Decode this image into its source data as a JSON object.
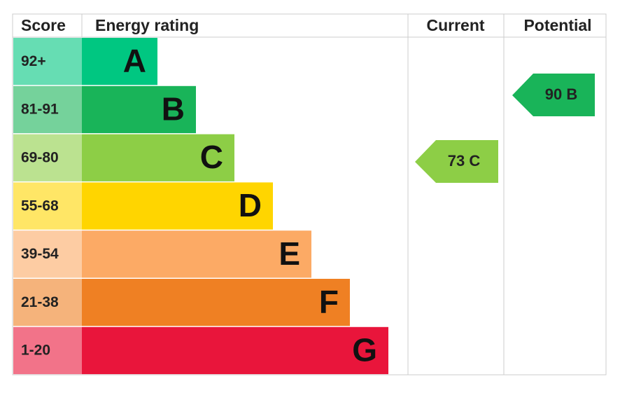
{
  "header": {
    "score": "Score",
    "energy": "Energy rating",
    "current": "Current",
    "potential": "Potential"
  },
  "bands": [
    {
      "score": "92+",
      "letter": "A",
      "color": "#00c781"
    },
    {
      "score": "81-91",
      "letter": "B",
      "color": "#19b459"
    },
    {
      "score": "69-80",
      "letter": "C",
      "color": "#8dce46"
    },
    {
      "score": "55-68",
      "letter": "D",
      "color": "#ffd500"
    },
    {
      "score": "39-54",
      "letter": "E",
      "color": "#fcaa65"
    },
    {
      "score": "21-38",
      "letter": "F",
      "color": "#ef8023"
    },
    {
      "score": "1-20",
      "letter": "G",
      "color": "#e9153b"
    }
  ],
  "current": {
    "label": "73 C",
    "color": "#8dce46"
  },
  "potential": {
    "label": "90 B",
    "color": "#19b459"
  }
}
